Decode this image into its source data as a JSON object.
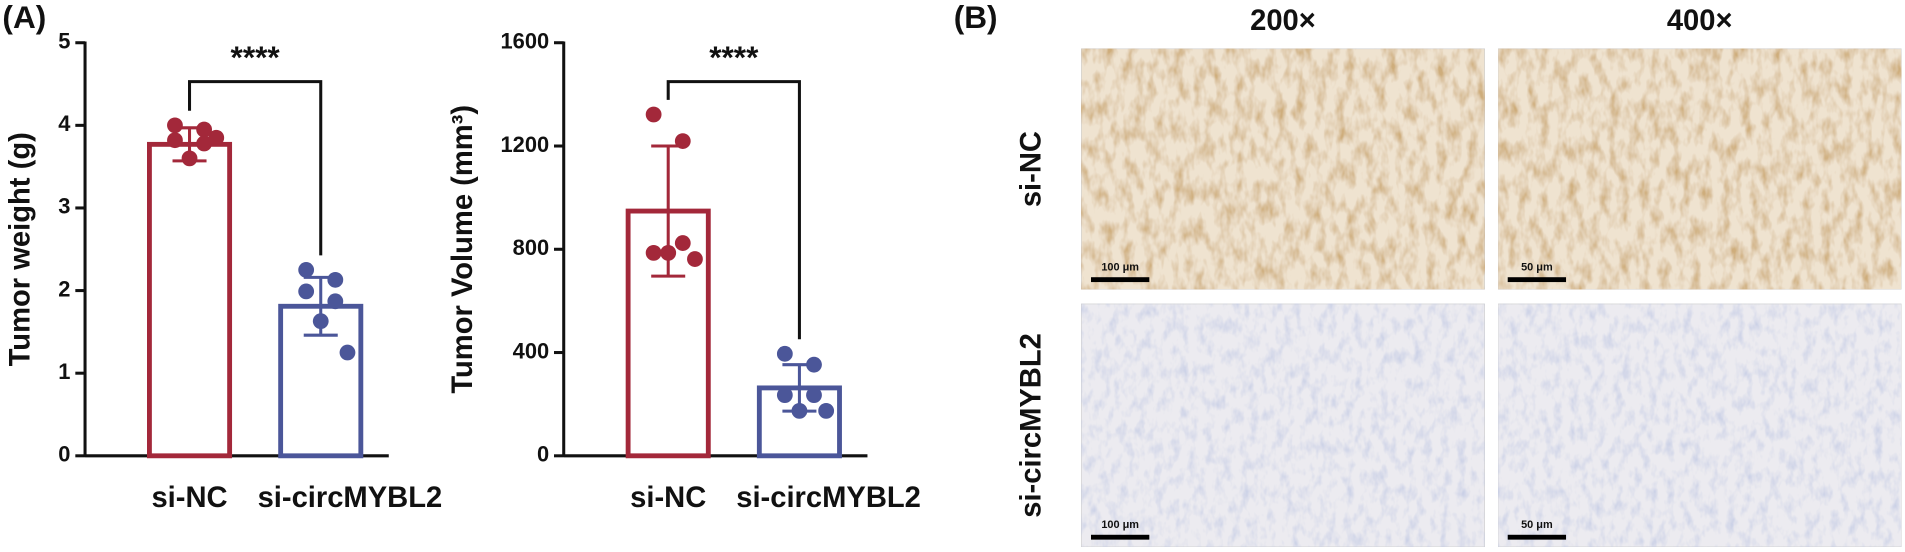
{
  "panel_labels": [
    "(A)",
    "(B)"
  ],
  "chart_data": [
    {
      "type": "bar",
      "y_label": "Tumor weight (g)",
      "categories": [
        "si-NC",
        "si-circMYBL2"
      ],
      "values": [
        3.77,
        1.81
      ],
      "errors": [
        0.2,
        0.35
      ],
      "colors": [
        "#a3283a",
        "#4b5699"
      ],
      "points": [
        [
          4.0,
          3.95,
          3.78,
          3.82,
          3.6,
          3.85
        ],
        [
          2.25,
          2.13,
          1.87,
          1.99,
          1.63,
          1.25
        ]
      ],
      "ylim": [
        0,
        5
      ],
      "yticks": [
        0,
        1,
        2,
        3,
        4,
        5
      ],
      "significance": "****"
    },
    {
      "type": "bar",
      "y_label": "Tumor Volume (mm³)",
      "categories": [
        "si-NC",
        "si-circMYBL2"
      ],
      "values": [
        948,
        263
      ],
      "errors": [
        252,
        90
      ],
      "colors": [
        "#a3283a",
        "#4b5699"
      ],
      "points": [
        [
          1322,
          1219,
          824,
          786,
          786,
          762
        ],
        [
          395,
          353,
          235,
          235,
          174,
          174
        ]
      ],
      "ylim": [
        0,
        1600
      ],
      "yticks": [
        0,
        400,
        800,
        1200,
        1600
      ],
      "significance": "****"
    }
  ],
  "micrographs": {
    "columns": [
      "200×",
      "400×"
    ],
    "rows": [
      "si-NC",
      "si-circMYBL2"
    ],
    "scale_bars": [
      [
        "100 μm",
        "50 μm"
      ],
      [
        "100 μm",
        "50 μm"
      ]
    ]
  }
}
